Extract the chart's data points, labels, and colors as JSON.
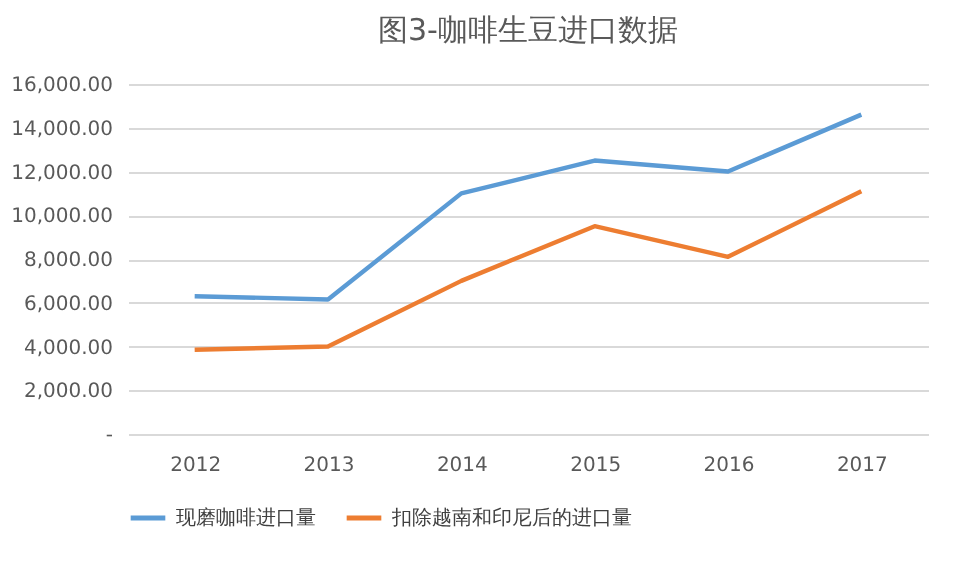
{
  "chart_data": {
    "type": "line",
    "title": "图3-咖啡生豆进口数据",
    "categories": [
      "2012",
      "2013",
      "2014",
      "2015",
      "2016",
      "2017"
    ],
    "series": [
      {
        "name": "现磨咖啡进口量",
        "color": "#5b9bd5",
        "values": [
          6300,
          6150,
          11000,
          12500,
          12000,
          14600
        ]
      },
      {
        "name": "扣除越南和印尼后的进口量",
        "color": "#ed7d31",
        "values": [
          3850,
          4000,
          7000,
          9500,
          8100,
          11100
        ]
      }
    ],
    "ylim": [
      0,
      16000
    ],
    "yticks": [
      {
        "value": 0,
        "label": "-"
      },
      {
        "value": 2000,
        "label": "2,000.00"
      },
      {
        "value": 4000,
        "label": "4,000.00"
      },
      {
        "value": 6000,
        "label": "6,000.00"
      },
      {
        "value": 8000,
        "label": "8,000.00"
      },
      {
        "value": 10000,
        "label": "10,000.00"
      },
      {
        "value": 12000,
        "label": "12,000.00"
      },
      {
        "value": 14000,
        "label": "14,000.00"
      },
      {
        "value": 16000,
        "label": "16,000.00"
      }
    ],
    "grid": "y",
    "legend": "bottom",
    "marker": "none",
    "line_style": "solid"
  }
}
